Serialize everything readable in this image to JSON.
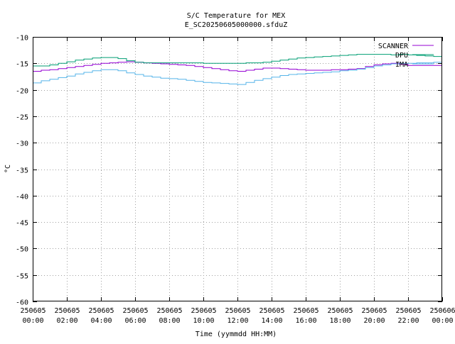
{
  "chart_data": {
    "type": "line",
    "title": "S/C Temperature for MEX",
    "subtitle": "E_SC20250605000000.sfduZ",
    "xlabel": "Time (yymmdd HH:MM)",
    "ylabel": "°C",
    "xlim": [
      0,
      24
    ],
    "ylim": [
      -60,
      -10
    ],
    "y_ticks": [
      -10,
      -15,
      -20,
      -25,
      -30,
      -35,
      -40,
      -45,
      -50,
      -55,
      -60
    ],
    "x_ticks": [
      {
        "hour": 0,
        "line1": "250605",
        "line2": "00:00"
      },
      {
        "hour": 2,
        "line1": "250605",
        "line2": "02:00"
      },
      {
        "hour": 4,
        "line1": "250605",
        "line2": "04:00"
      },
      {
        "hour": 6,
        "line1": "250605",
        "line2": "06:00"
      },
      {
        "hour": 8,
        "line1": "250605",
        "line2": "08:00"
      },
      {
        "hour": 10,
        "line1": "250605",
        "line2": "10:00"
      },
      {
        "hour": 12,
        "line1": "250605",
        "line2": "12:00"
      },
      {
        "hour": 14,
        "line1": "250605",
        "line2": "14:00"
      },
      {
        "hour": 16,
        "line1": "250605",
        "line2": "16:00"
      },
      {
        "hour": 18,
        "line1": "250605",
        "line2": "18:00"
      },
      {
        "hour": 20,
        "line1": "250605",
        "line2": "20:00"
      },
      {
        "hour": 22,
        "line1": "250605",
        "line2": "22:00"
      },
      {
        "hour": 24,
        "line1": "250606",
        "line2": "00:00"
      }
    ],
    "grid": true,
    "legend_position": "top-right",
    "series": [
      {
        "name": "SCANNER",
        "color": "#9400d3",
        "x": [
          0,
          0.5,
          1,
          1.5,
          2,
          2.5,
          3,
          3.5,
          4,
          4.5,
          5,
          5.5,
          6,
          6.5,
          7,
          7.5,
          8,
          8.5,
          9,
          9.5,
          10,
          10.5,
          11,
          11.5,
          12,
          12.5,
          13,
          13.5,
          14,
          14.5,
          15,
          15.5,
          16,
          16.5,
          17,
          17.5,
          18,
          18.5,
          19,
          19.5,
          20,
          20.5,
          21,
          21.5,
          22,
          22.5,
          23,
          23.5,
          24
        ],
        "values": [
          -16.5,
          -16.3,
          -16.2,
          -16.0,
          -15.8,
          -15.6,
          -15.4,
          -15.2,
          -15.0,
          -14.9,
          -14.8,
          -14.7,
          -14.8,
          -14.9,
          -15.0,
          -15.1,
          -15.2,
          -15.3,
          -15.4,
          -15.6,
          -15.8,
          -16.0,
          -16.2,
          -16.4,
          -16.5,
          -16.3,
          -16.1,
          -15.9,
          -15.9,
          -16.0,
          -16.1,
          -16.2,
          -16.3,
          -16.3,
          -16.3,
          -16.2,
          -16.2,
          -16.1,
          -16.0,
          -15.6,
          -15.3,
          -15.1,
          -15.0,
          -15.2,
          -15.4,
          -15.4,
          -15.4,
          -15.4,
          -15.4
        ]
      },
      {
        "name": "DPU",
        "color": "#009e73",
        "x": [
          0,
          0.5,
          1,
          1.5,
          2,
          2.5,
          3,
          3.5,
          4,
          4.5,
          5,
          5.5,
          6,
          6.5,
          7,
          7.5,
          8,
          8.5,
          9,
          9.5,
          10,
          10.5,
          11,
          11.5,
          12,
          12.5,
          13,
          13.5,
          14,
          14.5,
          15,
          15.5,
          16,
          16.5,
          17,
          17.5,
          18,
          18.5,
          19,
          19.5,
          20,
          20.5,
          21,
          21.5,
          22,
          22.5,
          23,
          23.5,
          24
        ],
        "values": [
          -15.5,
          -15.5,
          -15.3,
          -15.0,
          -14.7,
          -14.4,
          -14.2,
          -14.0,
          -13.9,
          -13.9,
          -14.1,
          -14.5,
          -14.8,
          -14.9,
          -14.9,
          -14.9,
          -14.9,
          -14.9,
          -14.9,
          -14.9,
          -15.0,
          -15.0,
          -15.0,
          -15.0,
          -15.0,
          -14.9,
          -14.9,
          -14.8,
          -14.6,
          -14.4,
          -14.2,
          -14.0,
          -13.9,
          -13.8,
          -13.7,
          -13.6,
          -13.5,
          -13.4,
          -13.3,
          -13.3,
          -13.3,
          -13.3,
          -13.4,
          -13.3,
          -13.4,
          -13.5,
          -13.6,
          -13.7,
          -13.7
        ]
      },
      {
        "name": "IMA",
        "color": "#56b4e9",
        "x": [
          0,
          0.5,
          1,
          1.5,
          2,
          2.5,
          3,
          3.5,
          4,
          4.5,
          5,
          5.5,
          6,
          6.5,
          7,
          7.5,
          8,
          8.5,
          9,
          9.5,
          10,
          10.5,
          11,
          11.5,
          12,
          12.5,
          13,
          13.5,
          14,
          14.5,
          15,
          15.5,
          16,
          16.5,
          17,
          17.5,
          18,
          18.5,
          19,
          19.5,
          20,
          20.5,
          21,
          21.5,
          22,
          22.5,
          23,
          23.5,
          24
        ],
        "values": [
          -18.7,
          -18.3,
          -18.0,
          -17.7,
          -17.4,
          -17.0,
          -16.7,
          -16.4,
          -16.2,
          -16.2,
          -16.4,
          -16.8,
          -17.1,
          -17.4,
          -17.6,
          -17.8,
          -17.9,
          -18.0,
          -18.2,
          -18.4,
          -18.6,
          -18.7,
          -18.8,
          -18.9,
          -19.0,
          -18.6,
          -18.2,
          -17.9,
          -17.6,
          -17.3,
          -17.1,
          -17.0,
          -16.9,
          -16.8,
          -16.7,
          -16.6,
          -16.4,
          -16.3,
          -16.1,
          -15.8,
          -15.5,
          -15.3,
          -15.1,
          -15.0,
          -15.0,
          -14.9,
          -14.9,
          -14.8,
          -14.8
        ]
      }
    ]
  }
}
